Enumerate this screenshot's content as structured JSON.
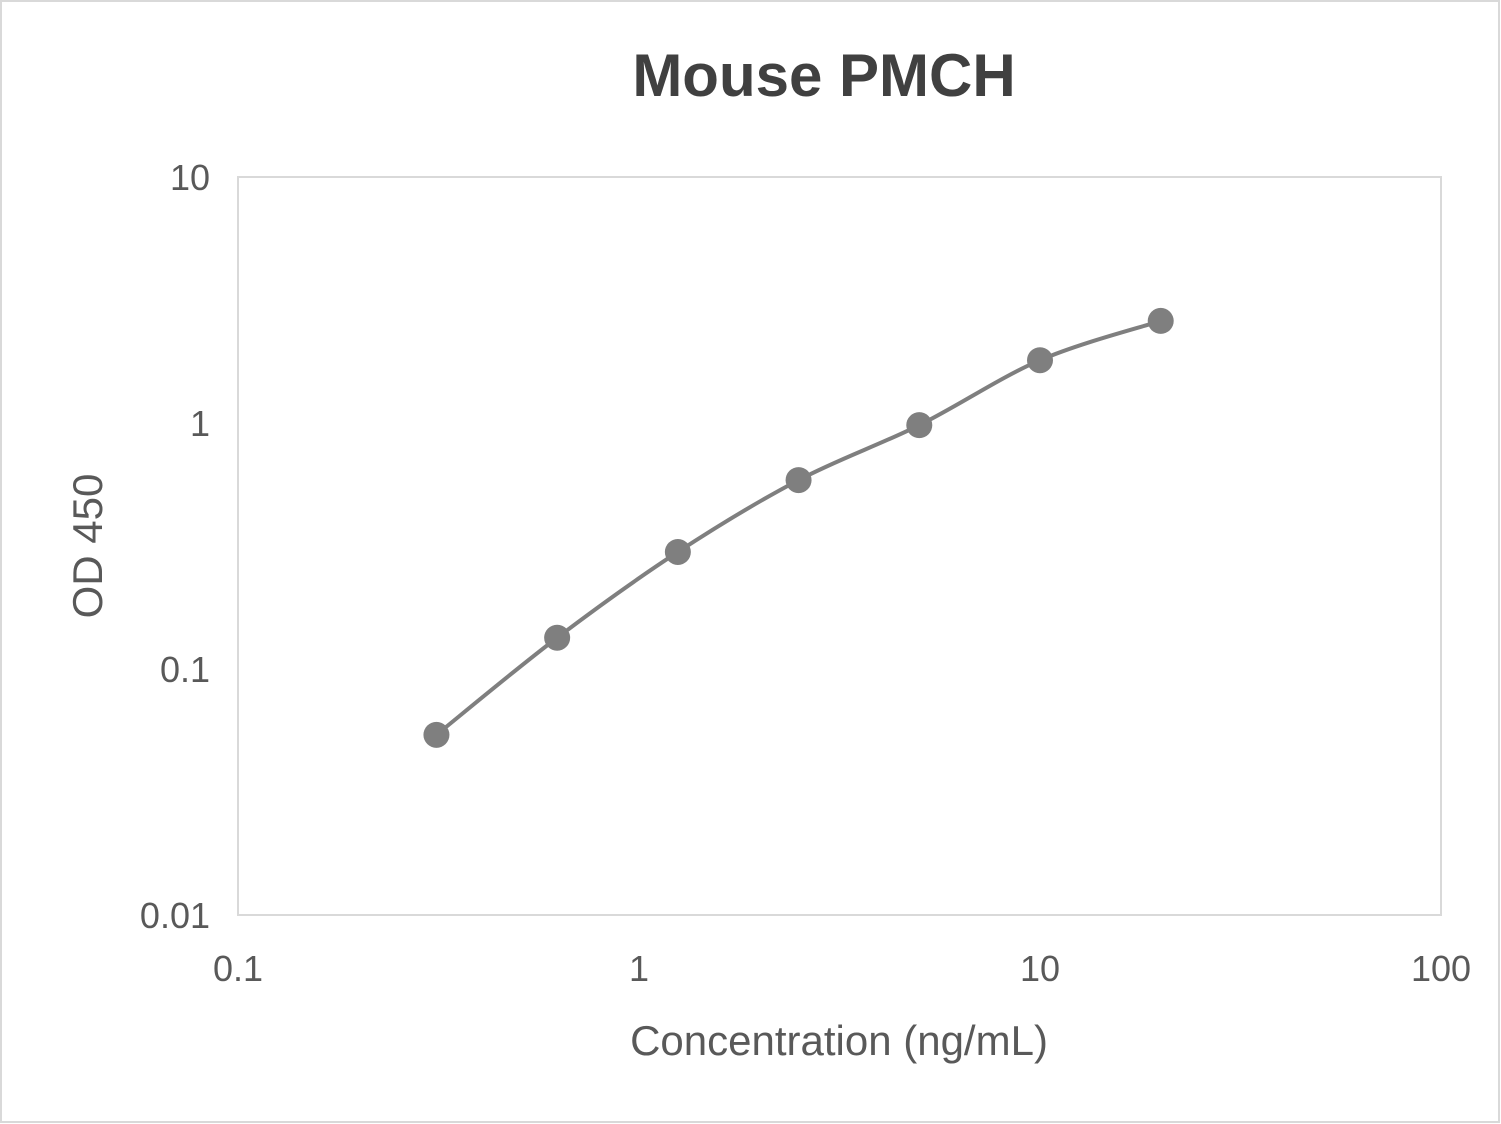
{
  "chart_data": {
    "type": "line",
    "title": "Mouse PMCH",
    "xlabel": "Concentration (ng/mL)",
    "ylabel": "OD 450",
    "x_scale": "log",
    "y_scale": "log",
    "xlim": [
      0.1,
      100
    ],
    "ylim": [
      0.01,
      10
    ],
    "x_ticks": [
      "0.1",
      "1",
      "10",
      "100"
    ],
    "y_ticks": [
      "0.01",
      "0.1",
      "1",
      "10"
    ],
    "grid": false,
    "legend": "none",
    "smoothed": true,
    "markers": true,
    "series": [
      {
        "color": "#7f7f7f",
        "x": [
          0.3125,
          0.625,
          1.25,
          2.5,
          5,
          10,
          20
        ],
        "y": [
          0.054,
          0.134,
          0.299,
          0.586,
          0.98,
          1.8,
          2.6
        ]
      }
    ]
  },
  "colors": {
    "text": "#595959",
    "title": "#404040",
    "axis": "#d9d9d9",
    "series": "#7f7f7f"
  }
}
